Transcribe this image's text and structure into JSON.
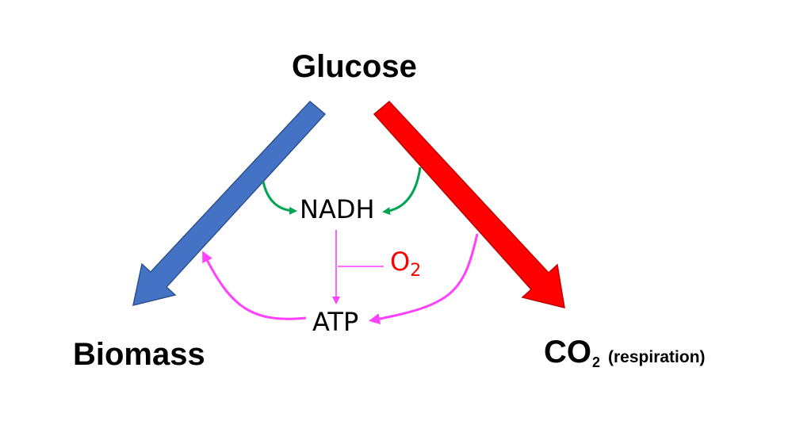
{
  "nodes": {
    "glucose": "Glucose",
    "biomass": "Biomass",
    "co2": {
      "main": "CO",
      "subscript": "2",
      "note": "(respiration)"
    },
    "nadh": "NADH",
    "atp": "ATP",
    "o2": {
      "main": "O",
      "subscript": "2"
    }
  },
  "colors": {
    "biomass_arrow": "#4472c4",
    "respiration_arrow": "#ff0000",
    "nadh_arrows": "#00a550",
    "atp_arrows": "#ff40ff",
    "oxygen_text": "#ff0000"
  }
}
